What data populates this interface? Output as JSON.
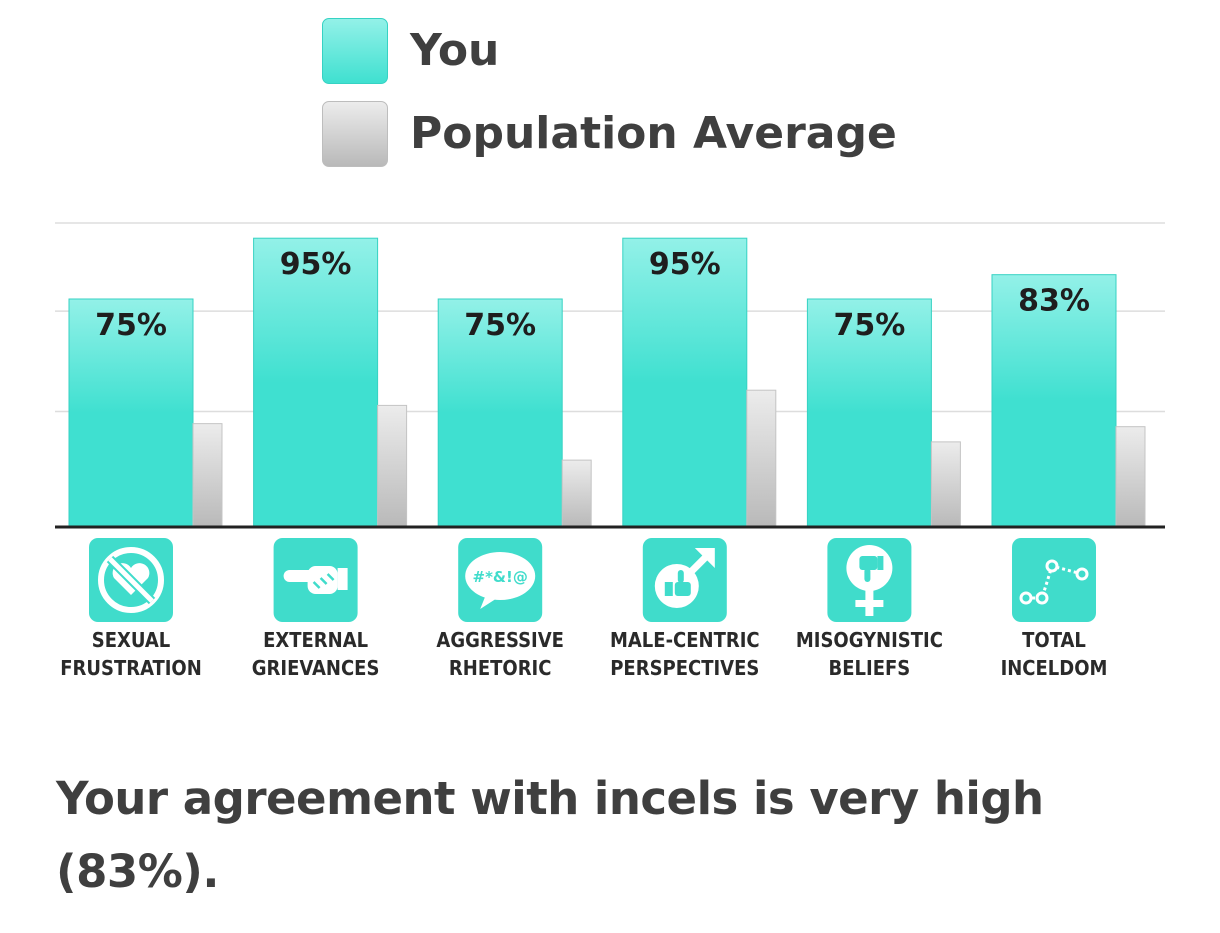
{
  "legend": {
    "you_label": "You",
    "population_label": "Population Average"
  },
  "colors": {
    "you_top": "#93f1e8",
    "you_bottom": "#3fe0d0",
    "you_stroke": "#36d2c3",
    "population_top": "#ececec",
    "population_bottom": "#b9b9b9",
    "icon_bg": "#40dccb",
    "axis": "#222222",
    "grid": "#dddddd"
  },
  "chart_data": {
    "type": "bar",
    "categories": [
      [
        "SEXUAL",
        "FRUSTRATION"
      ],
      [
        "EXTERNAL",
        "GRIEVANCES"
      ],
      [
        "AGGRESSIVE",
        "RHETORIC"
      ],
      [
        "MALE-CENTRIC",
        "PERSPECTIVES"
      ],
      [
        "MISOGYNISTIC",
        "BELIEFS"
      ],
      [
        "TOTAL",
        "INCELDOM"
      ]
    ],
    "category_icons": [
      "crossed-heart-icon",
      "pointing-hand-icon",
      "swear-speech-bubble-icon",
      "male-symbol-thumbs-up-icon",
      "female-symbol-thumbs-down-icon",
      "scatter-line-icon"
    ],
    "series": [
      {
        "name": "You",
        "values": [
          75,
          95,
          75,
          95,
          75,
          83
        ],
        "labels": [
          "75%",
          "95%",
          "75%",
          "95%",
          "75%",
          "83%"
        ]
      },
      {
        "name": "Population Average",
        "values": [
          34,
          40,
          22,
          45,
          28,
          33
        ]
      }
    ],
    "ylim": [
      0,
      100
    ],
    "grid": true,
    "legend_position": "top"
  },
  "summary": {
    "text": "Your agreement with incels is very high (83%)."
  }
}
